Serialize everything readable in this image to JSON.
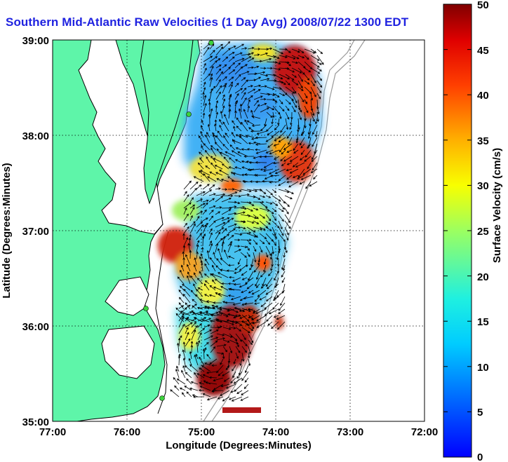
{
  "chart_data": {
    "type": "heatmap",
    "title": "Southern Mid-Atlantic Raw Velocities (1 Day Avg) 2008/07/22 1300 EDT",
    "xlabel": "Longitude (Degrees:Minutes)",
    "ylabel": "Latitude (Degrees:Minutes)",
    "x_ticks": [
      "77:00",
      "76:00",
      "75:00",
      "74:00",
      "73:00",
      "72:00"
    ],
    "y_ticks": [
      "39:00",
      "38:00",
      "37:00",
      "36:00",
      "35:00"
    ],
    "xlim": [
      -77,
      -72
    ],
    "ylim": [
      35,
      39
    ],
    "grid": true,
    "colorbar": {
      "label": "Surface Velocity (cm/s)",
      "min": 0,
      "max": 50,
      "ticks": [
        "50",
        "45",
        "40",
        "35",
        "30",
        "25",
        "20",
        "15",
        "10",
        "5",
        "0"
      ],
      "colormap": "jet"
    },
    "colors": {
      "land": "#5ef5a9",
      "title": "#1f22e0",
      "station": "#3cd23c"
    }
  }
}
